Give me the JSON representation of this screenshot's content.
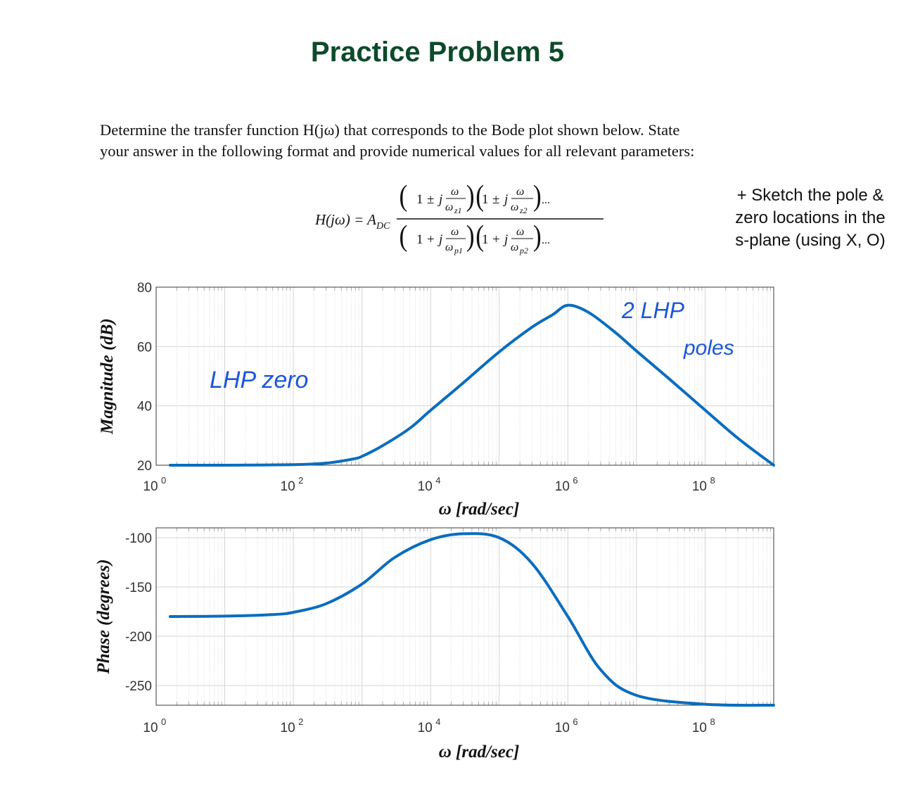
{
  "title": "Practice Problem 5",
  "problem": {
    "line1": "Determine the transfer function H(jω) that corresponds to the Bode plot shown below. State",
    "line2": "your answer in the following format and provide numerical values for all relevant parameters:"
  },
  "formula": {
    "lhs": "H(jω) = A",
    "lhs_sub": "DC",
    "numerator_factors": [
      {
        "sign": "±",
        "omega_sub": "z1"
      },
      {
        "sign": "±",
        "omega_sub": "z2"
      }
    ],
    "denominator_factors": [
      {
        "sign": "+",
        "omega_sub": "p1"
      },
      {
        "sign": "+",
        "omega_sub": "p2"
      }
    ],
    "ellipsis": "..."
  },
  "note": {
    "line1": "+ Sketch the pole &",
    "line2": "zero locations in the",
    "line3": "s-plane (using X, O)"
  },
  "annotations": {
    "lhp_zero": "LHP zero",
    "two_lhp": "2 LHP",
    "poles": "poles",
    "color": "#1a56db"
  },
  "chart_data": [
    {
      "type": "line",
      "name": "magnitude",
      "xscale": "log",
      "xlim": [
        1,
        1000000000
      ],
      "ylim": [
        20,
        80
      ],
      "x_tick_exponents": [
        0,
        2,
        4,
        6,
        8
      ],
      "y_ticks": [
        20,
        40,
        60,
        80
      ],
      "ylabel": "Magnitude (dB)",
      "xlabel": "ω [rad/sec]",
      "grid": true,
      "line_color": "#0a6dbf",
      "series": [
        {
          "x": [
            1.6,
            10,
            100,
            300,
            700,
            1000,
            2000,
            5000,
            10000,
            30000,
            100000,
            300000,
            600000,
            1000000,
            2000000,
            5000000,
            10000000,
            30000000,
            100000000,
            300000000,
            1000000000
          ],
          "y": [
            20,
            20,
            20.2,
            20.7,
            22,
            23,
            26.6,
            32.5,
            38.5,
            47.8,
            58.2,
            66.5,
            70.7,
            73.9,
            71.5,
            64.6,
            58.5,
            49.1,
            38.6,
            29.1,
            20
          ]
        }
      ]
    },
    {
      "type": "line",
      "name": "phase",
      "xscale": "log",
      "xlim": [
        1,
        1000000000
      ],
      "ylim": [
        -270,
        -90
      ],
      "x_tick_exponents": [
        0,
        2,
        4,
        6,
        8
      ],
      "y_ticks": [
        -100,
        -150,
        -200,
        -250
      ],
      "ylabel": "Phase (degrees)",
      "xlabel": "ω [rad/sec]",
      "grid": true,
      "line_color": "#0a6dbf",
      "series": [
        {
          "x": [
            1.6,
            10,
            50,
            100,
            300,
            1000,
            3000,
            10000,
            30000,
            100000,
            300000,
            1000000,
            3000000,
            10000000,
            100000000,
            1000000000
          ],
          "y": [
            -180,
            -179.6,
            -178,
            -175.7,
            -167,
            -147,
            -120,
            -102,
            -96,
            -100,
            -126,
            -180,
            -234,
            -260,
            -269,
            -270
          ]
        }
      ]
    }
  ]
}
